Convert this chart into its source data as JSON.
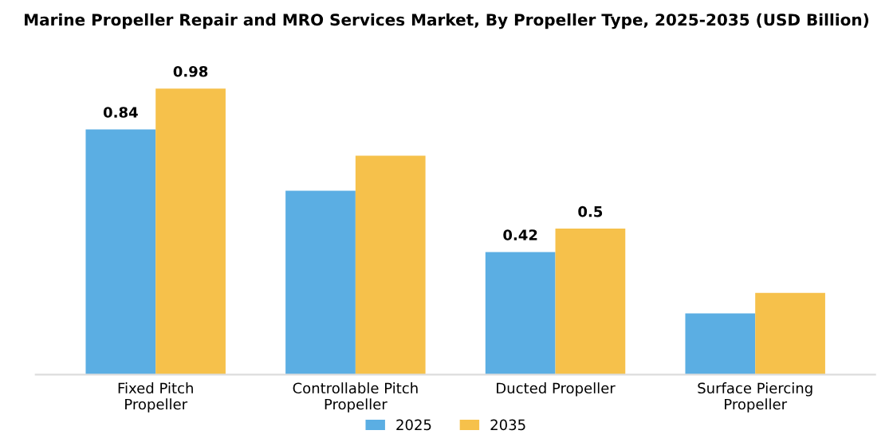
{
  "chart_data": {
    "type": "bar",
    "title": "Marine Propeller Repair and MRO Services Market, By Propeller Type, 2025-2035 (USD Billion)",
    "categories": [
      "Fixed Pitch\nPropeller",
      "Controllable Pitch\nPropeller",
      "Ducted Propeller",
      "Surface Piercing\nPropeller"
    ],
    "series": [
      {
        "name": "2025",
        "color": "#5baee3",
        "values": [
          0.84,
          0.63,
          0.42,
          0.21
        ],
        "value_labels": [
          "0.84",
          null,
          "0.42",
          null
        ]
      },
      {
        "name": "2035",
        "color": "#f6c14b",
        "values": [
          0.98,
          0.75,
          0.5,
          0.28
        ],
        "value_labels": [
          "0.98",
          null,
          "0.5",
          null
        ]
      }
    ],
    "legend": "bottom",
    "grid": false,
    "tick_labels": "x"
  }
}
